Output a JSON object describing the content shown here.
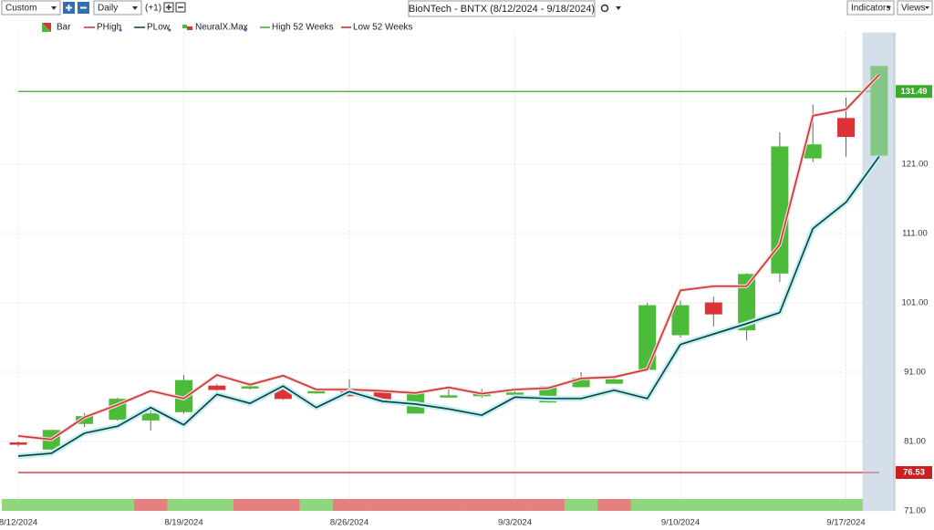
{
  "toolbar": {
    "range": "Custom",
    "interval": "Daily",
    "offset": "(+1)",
    "indicators": "Indicators",
    "views": "Views"
  },
  "chart_data": {
    "type": "candlestick",
    "title": "BioNTech - BNTX (8/12/2024 - 9/18/2024)",
    "candle_name": "Bar",
    "up_color": "#4cbb3a",
    "down_color": "#dd3338",
    "categories": [
      "8/12/2024",
      null,
      null,
      null,
      null,
      "8/19/2024",
      null,
      null,
      null,
      null,
      "8/26/2024",
      null,
      null,
      null,
      null,
      "9/3/2024",
      null,
      null,
      null,
      null,
      "9/10/2024",
      null,
      null,
      null,
      null,
      "9/17/2024",
      null
    ],
    "open": [
      80.8,
      79.9,
      83.6,
      84.2,
      84.1,
      85.3,
      89.0,
      88.8,
      88.6,
      88.2,
      88.5,
      88.1,
      85.1,
      87.6,
      87.6,
      88.0,
      86.7,
      88.9,
      89.4,
      91.4,
      96.4,
      101.0,
      97.1,
      105.3,
      121.9,
      127.6,
      122.3
    ],
    "close": [
      80.6,
      82.6,
      84.6,
      87.1,
      85.0,
      89.8,
      88.5,
      88.9,
      87.2,
      88.2,
      87.6,
      87.1,
      88.1,
      87.6,
      88.1,
      88.0,
      88.9,
      90.1,
      89.9,
      100.6,
      100.6,
      99.4,
      105.1,
      123.5,
      123.8,
      125.0,
      135.1
    ],
    "high": [
      81.0,
      82.7,
      85.1,
      87.3,
      86.1,
      90.6,
      89.3,
      89.0,
      89.2,
      88.6,
      90.0,
      88.3,
      88.2,
      89.0,
      88.6,
      88.4,
      89.0,
      91.0,
      90.1,
      101.0,
      101.3,
      101.9,
      105.3,
      125.6,
      129.6,
      130.6,
      135.1
    ],
    "low": [
      80.3,
      79.8,
      83.1,
      84.0,
      82.6,
      85.0,
      88.3,
      88.5,
      87.0,
      87.9,
      87.5,
      87.0,
      85.0,
      87.4,
      87.3,
      87.4,
      86.6,
      88.8,
      89.3,
      91.2,
      96.0,
      97.6,
      95.6,
      104.0,
      121.3,
      122.1,
      122.2
    ],
    "lines": [
      {
        "name": "PHigh",
        "color": "#cc3333",
        "values": [
          81.8,
          81.3,
          84.5,
          86.3,
          88.3,
          87.2,
          90.6,
          89.2,
          90.5,
          88.5,
          88.5,
          88.3,
          88.0,
          88.8,
          87.9,
          88.5,
          88.7,
          90.1,
          90.3,
          91.4,
          102.8,
          103.4,
          103.4,
          109.4,
          128.0,
          128.9,
          133.9
        ]
      },
      {
        "name": "PLow",
        "color": "#0d3d40",
        "values": [
          78.9,
          79.3,
          82.2,
          83.2,
          85.9,
          83.4,
          87.8,
          86.5,
          89.0,
          85.9,
          88.2,
          86.8,
          86.4,
          85.7,
          84.8,
          87.4,
          87.2,
          87.2,
          88.4,
          87.2,
          95.0,
          96.5,
          98.0,
          99.6,
          111.7,
          115.5,
          122.1
        ]
      }
    ],
    "signal": {
      "name": "NeuralX.Max",
      "up_color": "#8fd67f",
      "down_color": "#e68080",
      "values": [
        1,
        1,
        1,
        1,
        -1,
        1,
        1,
        -1,
        -1,
        1,
        -1,
        -1,
        -1,
        -1,
        -1,
        -1,
        -1,
        1,
        -1,
        1,
        1,
        1,
        1,
        1,
        1,
        1,
        null
      ]
    },
    "reference_lines": [
      {
        "name": "High 52 Weeks",
        "value": 131.49,
        "color": "#3aaa2a"
      },
      {
        "name": "Low 52 Weeks",
        "value": 76.53,
        "color": "#cc2020"
      }
    ],
    "ylim": [
      71,
      140
    ],
    "yticks": [
      {
        "value": 71,
        "label": "71.00"
      },
      {
        "value": 81,
        "label": "81.00"
      },
      {
        "value": 91,
        "label": "91.00"
      },
      {
        "value": 101,
        "label": "101.00"
      },
      {
        "value": 111,
        "label": "111.00"
      },
      {
        "value": 121,
        "label": "121.00"
      }
    ],
    "grid": true
  }
}
